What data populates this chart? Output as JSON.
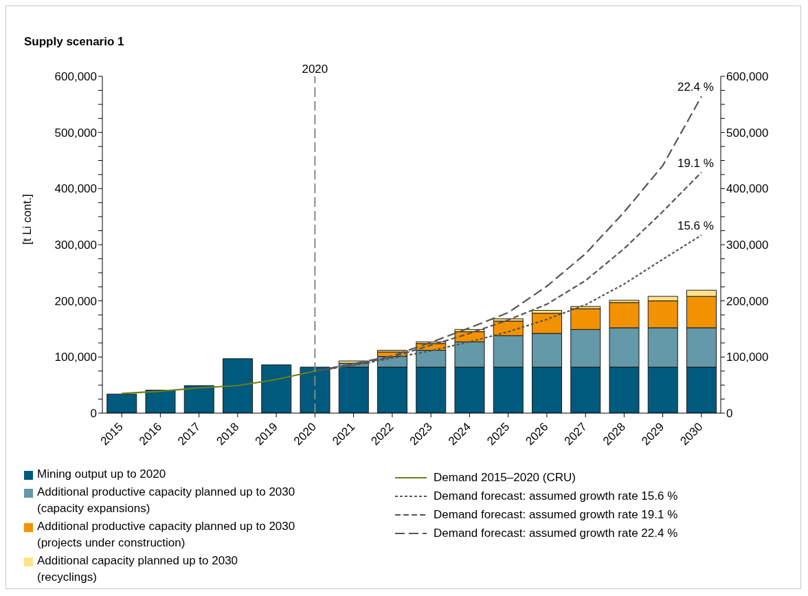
{
  "chart_data": {
    "type": "bar",
    "title": "Supply scenario 1",
    "ylabel": "[t Li cont.]",
    "categories": [
      "2015",
      "2016",
      "2017",
      "2018",
      "2019",
      "2020",
      "2021",
      "2022",
      "2023",
      "2024",
      "2025",
      "2026",
      "2027",
      "2028",
      "2029",
      "2030"
    ],
    "stacked": true,
    "series": [
      {
        "name": "Mining output up to 2020",
        "color": "#005a7d",
        "values": [
          34000,
          41000,
          49000,
          97000,
          86000,
          82000,
          82000,
          82000,
          82000,
          82000,
          82000,
          82000,
          82000,
          82000,
          82000,
          82000
        ]
      },
      {
        "name": "Additional productive capacity planned up to 2030 (capacity expansions)",
        "color": "#6399a8",
        "values": [
          null,
          null,
          null,
          null,
          null,
          null,
          7000,
          19000,
          30000,
          45000,
          56000,
          60000,
          67000,
          70000,
          70000,
          70000
        ]
      },
      {
        "name": "Additional productive capacity planned up to 2030 (projects under construction)",
        "color": "#f39200",
        "values": [
          null,
          null,
          null,
          null,
          null,
          null,
          null,
          8000,
          12000,
          18000,
          26000,
          36000,
          37000,
          45000,
          48000,
          56000
        ]
      },
      {
        "name": "Additional capacity planned up to 2030 (recyclings)",
        "color": "#ffe38a",
        "values": [
          null,
          null,
          null,
          null,
          null,
          null,
          4000,
          3000,
          3000,
          4000,
          4000,
          5000,
          4000,
          4000,
          8000,
          11000
        ]
      },
      {
        "name": "Demand 2015–2020 (CRU)",
        "type": "line",
        "line_style": "solid",
        "color": "#6b7f1a",
        "values": [
          35000,
          39000,
          45000,
          49000,
          60000,
          75000,
          null,
          null,
          null,
          null,
          null,
          null,
          null,
          null,
          null,
          null
        ]
      },
      {
        "name": "Demand forecast: assumed growth rate 15.6 %",
        "type": "line",
        "line_style": "dashed",
        "color": "#555555",
        "values": [
          null,
          null,
          null,
          null,
          null,
          75000,
          85000,
          98000,
          111000,
          127000,
          145000,
          167000,
          193000,
          230000,
          274000,
          317000
        ]
      },
      {
        "name": "Demand forecast: assumed growth rate 19.1 %",
        "type": "line",
        "line_style": "dashed",
        "color": "#555555",
        "values": [
          null,
          null,
          null,
          null,
          null,
          75000,
          86000,
          100000,
          121000,
          142000,
          166000,
          194000,
          236000,
          293000,
          359000,
          429000
        ]
      },
      {
        "name": "Demand forecast: assumed growth rate 22.4 %",
        "type": "line",
        "line_style": "dashed",
        "color": "#555555",
        "values": [
          null,
          null,
          null,
          null,
          null,
          75000,
          88000,
          102000,
          126000,
          152000,
          179000,
          226000,
          284000,
          358000,
          441000,
          564000
        ]
      }
    ],
    "ylim": [
      0,
      600000
    ],
    "yticks": [
      {
        "value": 0,
        "label": "0"
      },
      {
        "value": 25000,
        "label": null
      },
      {
        "value": 50000,
        "label": null
      },
      {
        "value": 75000,
        "label": null
      },
      {
        "value": 100000,
        "label": "100,000"
      },
      {
        "value": 125000,
        "label": null
      },
      {
        "value": 150000,
        "label": null
      },
      {
        "value": 175000,
        "label": null
      },
      {
        "value": 200000,
        "label": "200,000"
      },
      {
        "value": 225000,
        "label": null
      },
      {
        "value": 250000,
        "label": null
      },
      {
        "value": 275000,
        "label": null
      },
      {
        "value": 300000,
        "label": "300,000"
      },
      {
        "value": 325000,
        "label": null
      },
      {
        "value": 350000,
        "label": null
      },
      {
        "value": 375000,
        "label": null
      },
      {
        "value": 400000,
        "label": "400,000"
      },
      {
        "value": 425000,
        "label": null
      },
      {
        "value": 450000,
        "label": null
      },
      {
        "value": 475000,
        "label": null
      },
      {
        "value": 500000,
        "label": "500,000"
      },
      {
        "value": 525000,
        "label": null
      },
      {
        "value": 550000,
        "label": null
      },
      {
        "value": 575000,
        "label": null
      },
      {
        "value": 600000,
        "label": "600,000"
      }
    ],
    "y2lim": [
      0,
      600000
    ],
    "y2ticks": [
      {
        "value": 0,
        "label": "0"
      },
      {
        "value": 25000,
        "label": null
      },
      {
        "value": 50000,
        "label": null
      },
      {
        "value": 75000,
        "label": null
      },
      {
        "value": 100000,
        "label": "100,000"
      },
      {
        "value": 125000,
        "label": null
      },
      {
        "value": 150000,
        "label": null
      },
      {
        "value": 175000,
        "label": null
      },
      {
        "value": 200000,
        "label": "200,000"
      },
      {
        "value": 225000,
        "label": null
      },
      {
        "value": 250000,
        "label": null
      },
      {
        "value": 275000,
        "label": null
      },
      {
        "value": 300000,
        "label": "300,000"
      },
      {
        "value": 325000,
        "label": null
      },
      {
        "value": 350000,
        "label": null
      },
      {
        "value": 375000,
        "label": null
      },
      {
        "value": 400000,
        "label": "400,000"
      },
      {
        "value": 425000,
        "label": null
      },
      {
        "value": 450000,
        "label": null
      },
      {
        "value": 475000,
        "label": null
      },
      {
        "value": 500000,
        "label": "500,000"
      },
      {
        "value": 525000,
        "label": null
      },
      {
        "value": 550000,
        "label": null
      },
      {
        "value": 575000,
        "label": null
      },
      {
        "value": 600000,
        "label": "600,000"
      }
    ],
    "ref_lines": [
      {
        "axis": "x",
        "value": "2020",
        "label": "2020",
        "color": "#888888",
        "line_style": "dashed"
      }
    ],
    "annotations": [
      {
        "text": "22.4 %",
        "x": "2030",
        "y": 564000
      },
      {
        "text": "19.1 %",
        "x": "2030",
        "y": 429000
      },
      {
        "text": "15.6 %",
        "x": "2030",
        "y": 317000
      }
    ],
    "grid": false,
    "legend": "bottom"
  }
}
